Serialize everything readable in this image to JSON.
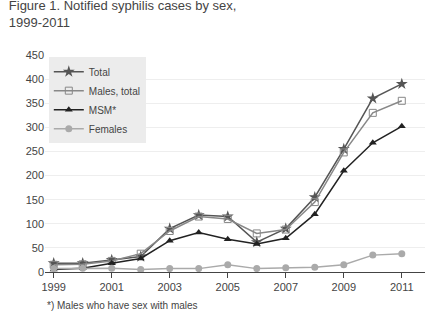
{
  "chart_data": {
    "type": "line",
    "title": "Figure 1. Notified syphilis cases by sex,",
    "subtitle": "1999-2011",
    "annotations": [
      "*) Males who have sex with males"
    ],
    "x": [
      1999,
      2000,
      2001,
      2002,
      2003,
      2004,
      2005,
      2006,
      2007,
      2008,
      2009,
      2010,
      2011
    ],
    "series": [
      {
        "name": "Total",
        "color": "#555555",
        "marker": "star",
        "values": [
          18,
          18,
          25,
          32,
          90,
          118,
          115,
          62,
          90,
          155,
          255,
          360,
          390
        ]
      },
      {
        "name": "Males, total",
        "color": "#888888",
        "marker": "square-open",
        "values": [
          15,
          16,
          23,
          38,
          85,
          115,
          110,
          80,
          88,
          145,
          248,
          330,
          355
        ]
      },
      {
        "name": "MSM*",
        "color": "#222222",
        "marker": "triangle-up",
        "values": [
          5,
          8,
          18,
          28,
          65,
          82,
          68,
          58,
          70,
          120,
          210,
          268,
          302
        ]
      },
      {
        "name": "Females",
        "color": "#aaaaaa",
        "marker": "circle",
        "values": [
          7,
          8,
          8,
          5,
          7,
          7,
          15,
          7,
          9,
          10,
          15,
          35,
          38
        ]
      }
    ],
    "xlim": [
      1998.7,
      2011.8
    ],
    "xticks": [
      1999,
      2001,
      2003,
      2005,
      2007,
      2009,
      2011
    ],
    "ylim": [
      0,
      450
    ],
    "yticks": [
      0,
      50,
      100,
      150,
      200,
      250,
      300,
      350,
      400,
      450
    ],
    "grid": "y",
    "legend": "upper left"
  }
}
